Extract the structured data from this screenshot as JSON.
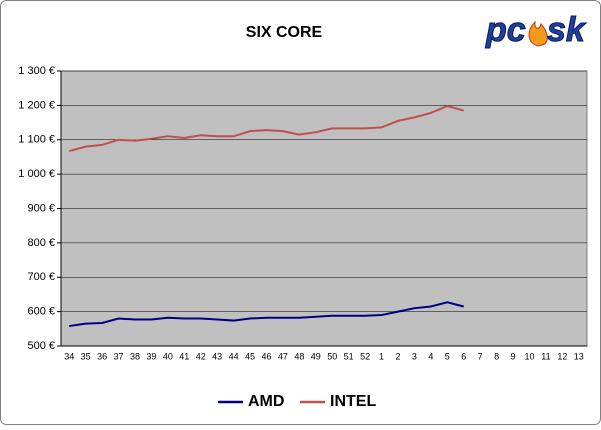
{
  "chart_data": {
    "type": "line",
    "title": "SIX CORE",
    "categories": [
      "34",
      "35",
      "36",
      "37",
      "38",
      "39",
      "40",
      "41",
      "42",
      "43",
      "44",
      "45",
      "46",
      "47",
      "48",
      "49",
      "50",
      "51",
      "52",
      "1",
      "2",
      "3",
      "4",
      "5",
      "6",
      "7",
      "8",
      "9",
      "10",
      "11",
      "12",
      "13"
    ],
    "series": [
      {
        "name": "AMD",
        "color": "#000080",
        "values": [
          558,
          565,
          567,
          580,
          577,
          577,
          582,
          580,
          580,
          577,
          574,
          580,
          582,
          582,
          582,
          585,
          588,
          588,
          588,
          590,
          600,
          610,
          615,
          627,
          615,
          null,
          null,
          null,
          null,
          null,
          null,
          null
        ]
      },
      {
        "name": "INTEL",
        "color": "#c0504d",
        "values": [
          1067,
          1080,
          1085,
          1100,
          1097,
          1103,
          1110,
          1105,
          1113,
          1110,
          1110,
          1125,
          1128,
          1125,
          1115,
          1122,
          1133,
          1133,
          1133,
          1136,
          1155,
          1165,
          1178,
          1198,
          1185,
          null,
          null,
          null,
          null,
          null,
          null,
          null
        ]
      }
    ],
    "ylim": [
      500,
      1300
    ],
    "yticks": [
      {
        "value": 500,
        "label": "500 €"
      },
      {
        "value": 600,
        "label": "600 €"
      },
      {
        "value": 700,
        "label": "700 €"
      },
      {
        "value": 800,
        "label": "800 €"
      },
      {
        "value": 900,
        "label": "900 €"
      },
      {
        "value": 1000,
        "label": "1 000 €"
      },
      {
        "value": 1100,
        "label": "1 100 €"
      },
      {
        "value": 1200,
        "label": "1 200 €"
      },
      {
        "value": 1300,
        "label": "1 300 €"
      }
    ],
    "grid": true,
    "plot_background": "#c0c0c0",
    "legend": "bottom"
  },
  "logo": {
    "left": "pc",
    "right": "sk"
  }
}
